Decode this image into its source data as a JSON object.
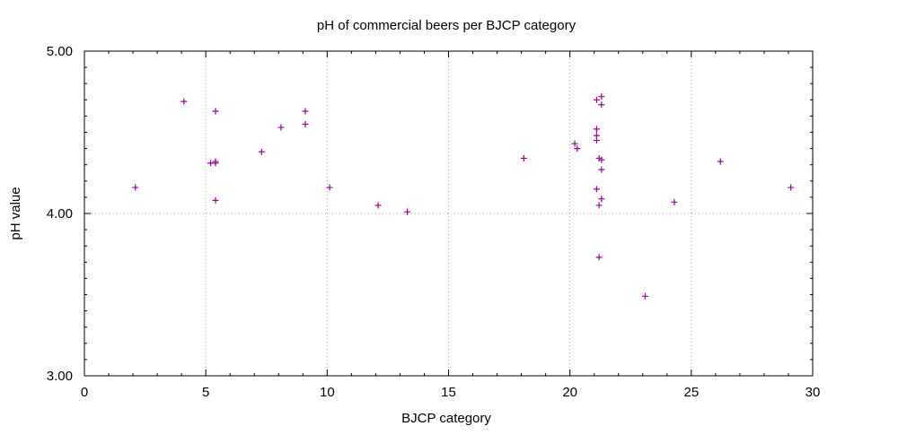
{
  "chart_data": {
    "type": "scatter",
    "title": "pH of commercial beers per BJCP category",
    "xlabel": "BJCP category",
    "ylabel": "pH value",
    "xlim": [
      0,
      30
    ],
    "ylim": [
      3.0,
      5.0
    ],
    "xticks": [
      0,
      5,
      10,
      15,
      20,
      25,
      30
    ],
    "xtick_labels": [
      "0",
      "5",
      "10",
      "15",
      "20",
      "25",
      "30"
    ],
    "yticks": [
      3.0,
      4.0,
      5.0
    ],
    "ytick_labels": [
      "3.00",
      "4.00",
      "5.00"
    ],
    "grid": true,
    "marker": "+",
    "color": "#990099",
    "points": [
      {
        "x": 2.1,
        "y": 4.16
      },
      {
        "x": 4.1,
        "y": 4.69
      },
      {
        "x": 5.2,
        "y": 4.31
      },
      {
        "x": 5.4,
        "y": 4.31
      },
      {
        "x": 5.4,
        "y": 4.32
      },
      {
        "x": 5.4,
        "y": 4.63
      },
      {
        "x": 5.4,
        "y": 4.08
      },
      {
        "x": 7.3,
        "y": 4.38
      },
      {
        "x": 8.1,
        "y": 4.53
      },
      {
        "x": 9.1,
        "y": 4.63
      },
      {
        "x": 9.1,
        "y": 4.55
      },
      {
        "x": 10.1,
        "y": 4.16
      },
      {
        "x": 12.1,
        "y": 4.05
      },
      {
        "x": 13.3,
        "y": 4.01
      },
      {
        "x": 18.1,
        "y": 4.34
      },
      {
        "x": 20.2,
        "y": 4.43
      },
      {
        "x": 20.3,
        "y": 4.4
      },
      {
        "x": 21.1,
        "y": 4.7
      },
      {
        "x": 21.1,
        "y": 4.52
      },
      {
        "x": 21.1,
        "y": 4.48
      },
      {
        "x": 21.1,
        "y": 4.45
      },
      {
        "x": 21.1,
        "y": 4.15
      },
      {
        "x": 21.2,
        "y": 4.34
      },
      {
        "x": 21.2,
        "y": 4.05
      },
      {
        "x": 21.2,
        "y": 3.73
      },
      {
        "x": 21.3,
        "y": 4.72
      },
      {
        "x": 21.3,
        "y": 4.67
      },
      {
        "x": 21.3,
        "y": 4.33
      },
      {
        "x": 21.3,
        "y": 4.27
      },
      {
        "x": 21.3,
        "y": 4.09
      },
      {
        "x": 23.1,
        "y": 3.49
      },
      {
        "x": 24.3,
        "y": 4.07
      },
      {
        "x": 26.2,
        "y": 4.32
      },
      {
        "x": 29.1,
        "y": 4.16
      }
    ]
  }
}
